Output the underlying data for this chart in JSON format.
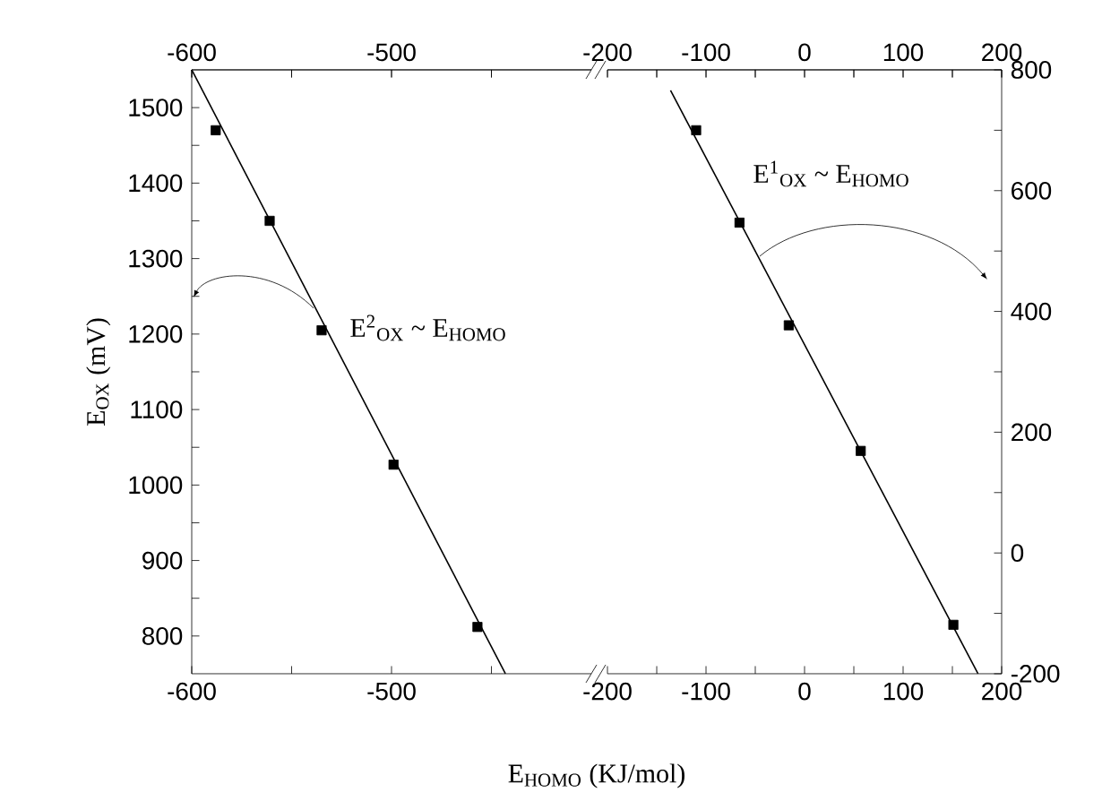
{
  "chart_data": [
    {
      "type": "scatter",
      "xlabel": "E$_{HOMO}$ (KJ/mol)",
      "ylabel": "E$_{OX}$ (mV)",
      "xlim": [
        -600,
        -400
      ],
      "xticks": [
        -600,
        {
          "value": -550,
          "label": null
        },
        -500,
        {
          "value": -450,
          "label": null
        }
      ],
      "x2lim": [
        -600,
        -400
      ],
      "x2ticks": [
        -600,
        {
          "value": -550,
          "label": null
        },
        -500,
        {
          "value": -450,
          "label": null
        }
      ],
      "ylim": [
        750,
        1550
      ],
      "yticks": [
        800,
        {
          "value": 850,
          "label": null
        },
        900,
        {
          "value": 950,
          "label": null
        },
        1000,
        {
          "value": 1050,
          "label": null
        },
        1100,
        {
          "value": 1150,
          "label": null
        },
        1200,
        {
          "value": 1250,
          "label": null
        },
        1300,
        {
          "value": 1350,
          "label": null
        },
        1400,
        {
          "value": 1450,
          "label": null
        },
        1500
      ],
      "series": [
        {
          "marker": "square",
          "color": "#000000",
          "x": [
            -588,
            -561,
            -535,
            -499,
            -457
          ],
          "values": [
            1470,
            1350,
            1205,
            1027,
            812
          ]
        },
        {
          "type": "line",
          "color": "#000000",
          "x": [
            -600,
            -443
          ],
          "values": [
            1550,
            750
          ]
        }
      ],
      "annotations": [
        "E$^{2}$$_{OX}$ ~ E$_{HOMO}$"
      ]
    },
    {
      "type": "scatter",
      "xlim": [
        -200,
        200
      ],
      "xticks": [
        -200,
        {
          "value": -150,
          "label": null
        },
        -100,
        {
          "value": -50,
          "label": null
        },
        0,
        {
          "value": 50,
          "label": null
        },
        100,
        {
          "value": 150,
          "label": null
        },
        200
      ],
      "x2lim": [
        -200,
        200
      ],
      "x2ticks": [
        -200,
        {
          "value": -150,
          "label": null
        },
        -100,
        {
          "value": -50,
          "label": null
        },
        0,
        {
          "value": 50,
          "label": null
        },
        100,
        {
          "value": 150,
          "label": null
        },
        200
      ],
      "y2lim": [
        -200,
        800
      ],
      "y2ticks": [
        -200,
        {
          "value": -100,
          "label": null
        },
        0,
        {
          "value": 100,
          "label": null
        },
        200,
        {
          "value": 300,
          "label": null
        },
        400,
        {
          "value": 500,
          "label": null
        },
        600,
        {
          "value": 700,
          "label": null
        },
        800
      ],
      "series": [
        {
          "axis": "y2",
          "marker": "square",
          "color": "#000000",
          "x": [
            -110,
            -66,
            -16,
            57,
            151
          ],
          "values": [
            700,
            547,
            377,
            169,
            -119
          ]
        },
        {
          "axis": "y2",
          "type": "line",
          "color": "#000000",
          "x": [
            -136,
            176
          ],
          "values": [
            766,
            -200
          ]
        }
      ],
      "annotations": [
        "E$^{1}$$_{OX}$ ~ E$_{HOMO}$"
      ]
    }
  ]
}
